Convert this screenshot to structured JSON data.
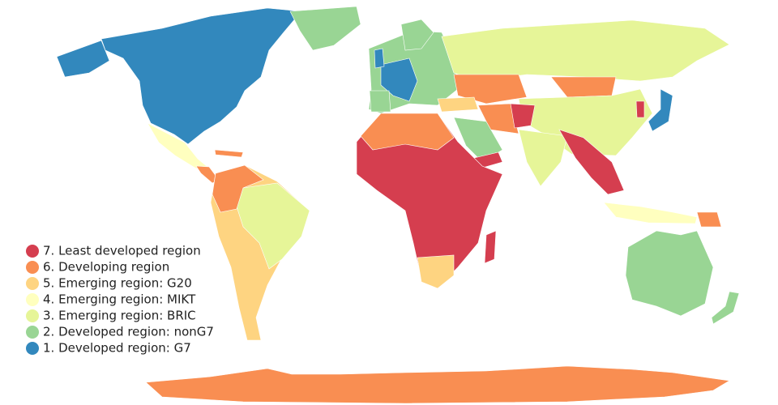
{
  "legend": {
    "items": [
      {
        "label": "7. Least developed region",
        "color": "#d53e4f"
      },
      {
        "label": "6. Developing region",
        "color": "#f98e52"
      },
      {
        "label": "5. Emerging region: G20",
        "color": "#fed481"
      },
      {
        "label": "4. Emerging region: MIKT",
        "color": "#ffffbf"
      },
      {
        "label": "3. Emerging region: BRIC",
        "color": "#e6f598"
      },
      {
        "label": "2. Developed region: nonG7",
        "color": "#99d594"
      },
      {
        "label": "1. Developed region: G7",
        "color": "#3288bd"
      }
    ]
  }
}
